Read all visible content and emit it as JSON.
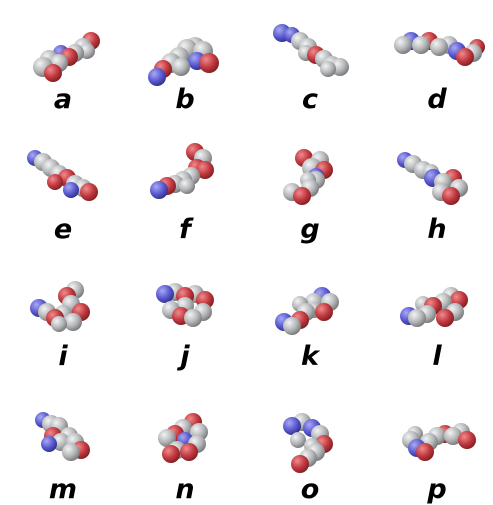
{
  "colors": {
    "background": "#ffffff",
    "carbon": "#b4b6b8",
    "oxygen": "#c0393f",
    "nitrogen": "#5a5ad0"
  },
  "panels": [
    {
      "label": "a"
    },
    {
      "label": "b"
    },
    {
      "label": "c"
    },
    {
      "label": "d"
    },
    {
      "label": "e"
    },
    {
      "label": "f"
    },
    {
      "label": "g"
    },
    {
      "label": "h"
    },
    {
      "label": "i"
    },
    {
      "label": "j"
    },
    {
      "label": "k"
    },
    {
      "label": "l"
    },
    {
      "label": "m"
    },
    {
      "label": "n"
    },
    {
      "label": "o"
    },
    {
      "label": "p"
    }
  ]
}
